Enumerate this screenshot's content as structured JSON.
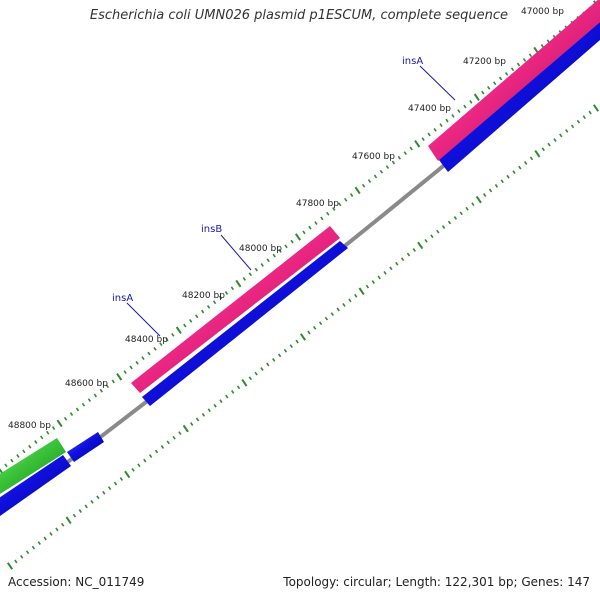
{
  "header": {
    "title": "Escherichia coli UMN026 plasmid p1ESCUM, complete sequence"
  },
  "footer": {
    "accession": "Accession: NC_011749",
    "summary": "Topology: circular; Length: 122,301 bp; Genes: 147"
  },
  "map": {
    "ruler_labels": [
      "47000 bp",
      "47200 bp",
      "47400 bp",
      "47600 bp",
      "47800 bp",
      "48000 bp",
      "48200 bp",
      "48400 bp",
      "48600 bp",
      "48800 bp"
    ],
    "gene_labels": [
      "insA",
      "insB",
      "insA"
    ],
    "colors": {
      "ruler_ticks": "#2e8b2e",
      "backbone": "#8a8a8a",
      "feature_pink": "#e8207a",
      "feature_blue": "#1010d8",
      "feature_green": "#33bb33",
      "label_lines": "#1a1ab0"
    }
  }
}
